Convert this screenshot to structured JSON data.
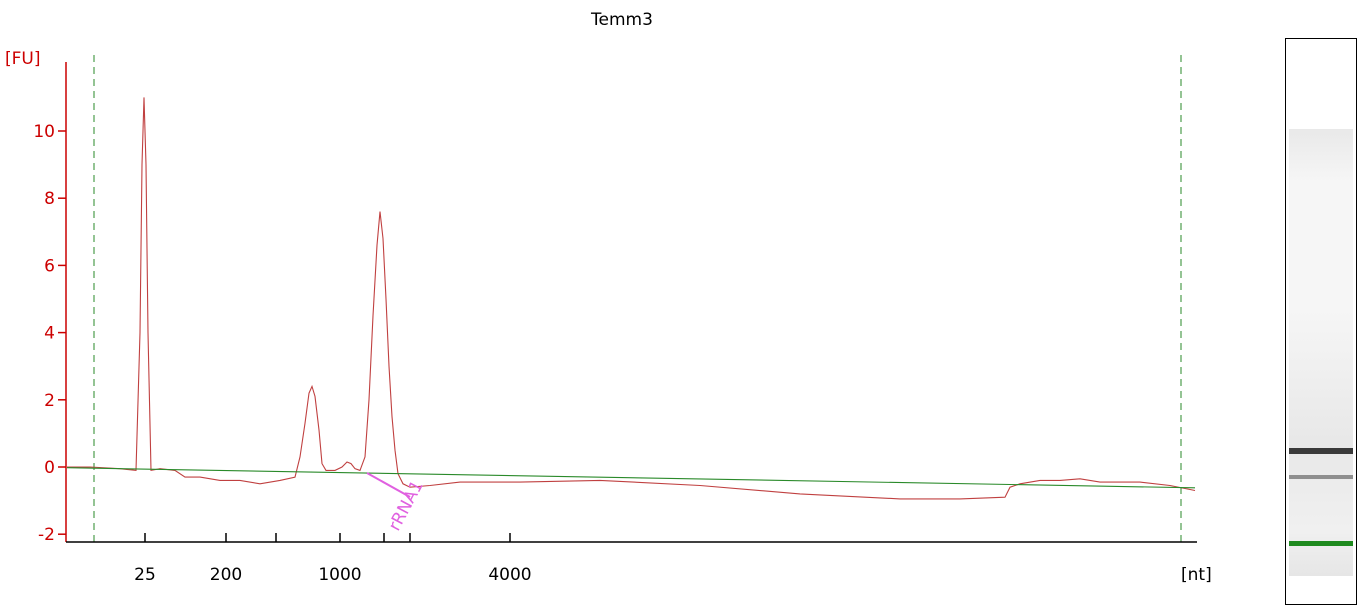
{
  "chart_data": {
    "type": "line",
    "title": "Temm3",
    "ylabel": "[FU]",
    "xunit": "[nt]",
    "ylim": [
      -2,
      11
    ],
    "yticks": [
      -2,
      0,
      2,
      4,
      6,
      8,
      10
    ],
    "xticks": [
      {
        "pos": 145,
        "label": "25"
      },
      {
        "pos": 226,
        "label": "200"
      },
      {
        "pos": 276,
        "label": ""
      },
      {
        "pos": 340,
        "label": "1000"
      },
      {
        "pos": 384,
        "label": ""
      },
      {
        "pos": 410,
        "label": ""
      },
      {
        "pos": 510,
        "label": "4000"
      }
    ],
    "series": [
      {
        "color": "#c04040",
        "points": [
          [
            67,
            0.0
          ],
          [
            90,
            0.0
          ],
          [
            120,
            -0.05
          ],
          [
            136,
            -0.1
          ],
          [
            140,
            4
          ],
          [
            142,
            9
          ],
          [
            144,
            11
          ],
          [
            146,
            9
          ],
          [
            148,
            4
          ],
          [
            151,
            -0.1
          ],
          [
            160,
            -0.05
          ],
          [
            175,
            -0.1
          ],
          [
            185,
            -0.3
          ],
          [
            200,
            -0.3
          ],
          [
            220,
            -0.4
          ],
          [
            240,
            -0.4
          ],
          [
            260,
            -0.5
          ],
          [
            280,
            -0.4
          ],
          [
            295,
            -0.3
          ],
          [
            300,
            0.3
          ],
          [
            305,
            1.3
          ],
          [
            309,
            2.2
          ],
          [
            312,
            2.4
          ],
          [
            315,
            2.1
          ],
          [
            319,
            1.1
          ],
          [
            322,
            0.1
          ],
          [
            326,
            -0.1
          ],
          [
            335,
            -0.1
          ],
          [
            342,
            0.0
          ],
          [
            347,
            0.15
          ],
          [
            351,
            0.1
          ],
          [
            355,
            -0.05
          ],
          [
            360,
            -0.1
          ],
          [
            365,
            0.3
          ],
          [
            369,
            2.0
          ],
          [
            373,
            4.5
          ],
          [
            377,
            6.6
          ],
          [
            380,
            7.6
          ],
          [
            383,
            6.8
          ],
          [
            386,
            5.0
          ],
          [
            389,
            3.0
          ],
          [
            392,
            1.5
          ],
          [
            395,
            0.5
          ],
          [
            398,
            -0.2
          ],
          [
            403,
            -0.5
          ],
          [
            410,
            -0.6
          ],
          [
            430,
            -0.55
          ],
          [
            460,
            -0.45
          ],
          [
            520,
            -0.45
          ],
          [
            600,
            -0.4
          ],
          [
            700,
            -0.55
          ],
          [
            800,
            -0.8
          ],
          [
            900,
            -0.95
          ],
          [
            960,
            -0.95
          ],
          [
            1005,
            -0.9
          ],
          [
            1010,
            -0.6
          ],
          [
            1020,
            -0.5
          ],
          [
            1040,
            -0.4
          ],
          [
            1060,
            -0.4
          ],
          [
            1080,
            -0.35
          ],
          [
            1100,
            -0.45
          ],
          [
            1140,
            -0.45
          ],
          [
            1170,
            -0.55
          ],
          [
            1195,
            -0.7
          ]
        ]
      },
      {
        "color": "#2a8a2a",
        "points": [
          [
            67,
            -0.02
          ],
          [
            1195,
            -0.62
          ]
        ]
      }
    ],
    "annotations": [
      {
        "label": "rRNA1",
        "color": "#e060e0"
      }
    ],
    "gel_bands": [
      {
        "top": 409,
        "height": 6,
        "color": "#3a3a3a"
      },
      {
        "top": 436,
        "height": 4,
        "color": "#8f8f8f"
      },
      {
        "top": 502,
        "height": 5,
        "color": "#1e8a1e"
      }
    ],
    "marker_lines": [
      94,
      1181
    ],
    "axis_color": "#cc0000"
  }
}
